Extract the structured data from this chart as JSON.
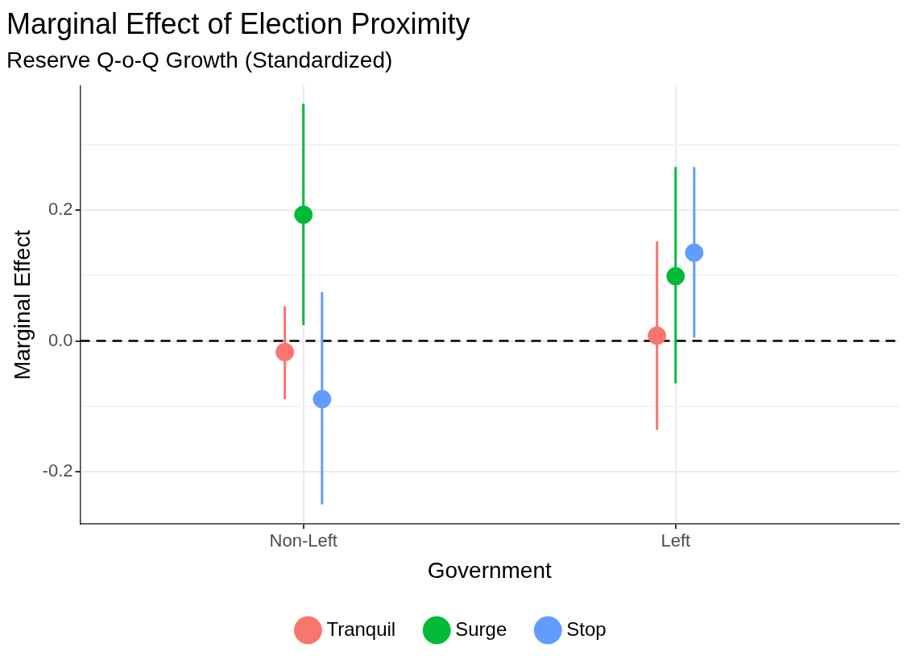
{
  "chart_data": {
    "type": "scatter",
    "title": "Marginal Effect of Election Proximity",
    "subtitle": "Reserve Q-o-Q Growth (Standardized)",
    "xlabel": "Government",
    "ylabel": "Marginal Effect",
    "categories": [
      "Non-Left",
      "Left"
    ],
    "series": [
      {
        "name": "Tranquil",
        "color": "#f8766d",
        "values": [
          -0.017,
          0.008
        ],
        "errors": [
          [
            -0.089,
            0.053
          ],
          [
            -0.136,
            0.152
          ]
        ]
      },
      {
        "name": "Surge",
        "color": "#00ba38",
        "values": [
          0.193,
          0.099
        ],
        "errors": [
          [
            0.024,
            0.363
          ],
          [
            -0.065,
            0.266
          ]
        ]
      },
      {
        "name": "Stop",
        "color": "#619cff",
        "values": [
          -0.089,
          0.135
        ],
        "errors": [
          [
            -0.25,
            0.075
          ],
          [
            0.005,
            0.266
          ]
        ]
      }
    ],
    "ylim": [
      -0.28,
      0.39
    ],
    "yticks": [
      -0.2,
      {
        "value": -0.1,
        "label": null
      },
      {
        "value": 0,
        "label": "0.0"
      },
      {
        "value": 0.1,
        "label": null
      },
      0.2,
      {
        "value": 0.3,
        "label": null
      }
    ],
    "ref_lines": [
      {
        "axis": "y",
        "value": 0,
        "color": "#000000",
        "line_style": "dashed"
      }
    ],
    "grid": true,
    "legend": "bottom",
    "marker": "circle"
  }
}
